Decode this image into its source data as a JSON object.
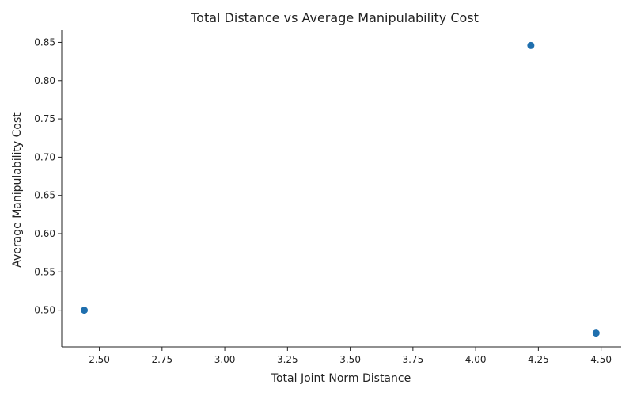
{
  "chart_data": {
    "type": "scatter",
    "title": "Total Distance vs Average Manipulability Cost",
    "xlabel": "Total Joint Norm Distance",
    "ylabel": "Average Manipulability Cost",
    "xlim": [
      2.35,
      4.58
    ],
    "ylim": [
      0.452,
      0.866
    ],
    "xticks": [
      "2.50",
      "2.75",
      "3.00",
      "3.25",
      "3.50",
      "3.75",
      "4.00",
      "4.25",
      "4.50"
    ],
    "yticks": [
      "0.50",
      "0.55",
      "0.60",
      "0.65",
      "0.70",
      "0.75",
      "0.80",
      "0.85"
    ],
    "points": [
      {
        "x": 2.44,
        "y": 0.5
      },
      {
        "x": 4.22,
        "y": 0.846
      },
      {
        "x": 4.48,
        "y": 0.47
      }
    ],
    "grid": false,
    "color": "#1f6fae"
  }
}
